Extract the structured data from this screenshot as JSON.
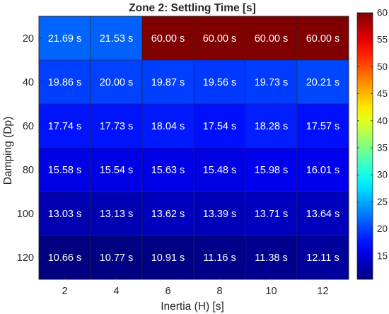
{
  "chart_data": {
    "type": "heatmap",
    "title": "Zone 2: Settling Time [s]",
    "xlabel": "Inertia (H) [s]",
    "ylabel": "Damping (Dp)",
    "x_categories": [
      "2",
      "4",
      "6",
      "8",
      "10",
      "12"
    ],
    "y_categories": [
      "20",
      "40",
      "60",
      "80",
      "100",
      "120"
    ],
    "values": [
      [
        21.69,
        21.53,
        60.0,
        60.0,
        60.0,
        60.0
      ],
      [
        19.86,
        20.0,
        19.87,
        19.56,
        19.73,
        20.21
      ],
      [
        17.74,
        17.73,
        18.04,
        17.54,
        18.28,
        17.57
      ],
      [
        15.58,
        15.54,
        15.63,
        15.48,
        15.98,
        16.01
      ],
      [
        13.03,
        13.13,
        13.62,
        13.39,
        13.71,
        13.64
      ],
      [
        10.66,
        10.77,
        10.91,
        11.16,
        11.38,
        12.11
      ]
    ],
    "cell_labels": [
      [
        "21.69 s",
        "21.53 s",
        "60.00 s",
        "60.00 s",
        "60.00 s",
        "60.00 s"
      ],
      [
        "19.86 s",
        "20.00 s",
        "19.87 s",
        "19.56 s",
        "19.73 s",
        "20.21 s"
      ],
      [
        "17.74 s",
        "17.73 s",
        "18.04 s",
        "17.54 s",
        "18.28 s",
        "17.57 s"
      ],
      [
        "15.58 s",
        "15.54 s",
        "15.63 s",
        "15.48 s",
        "15.98 s",
        "16.01 s"
      ],
      [
        "13.03 s",
        "13.13 s",
        "13.62 s",
        "13.39 s",
        "13.71 s",
        "13.64 s"
      ],
      [
        "10.66 s",
        "10.77 s",
        "10.91 s",
        "11.16 s",
        "11.38 s",
        "12.11 s"
      ]
    ],
    "colormap": "jet",
    "colorbar": {
      "range": [
        10.66,
        60.0
      ],
      "ticks": [
        15,
        20,
        25,
        30,
        35,
        40,
        45,
        50,
        55,
        60
      ],
      "tick_labels": [
        "15",
        "20",
        "25",
        "30",
        "35",
        "40",
        "45",
        "50",
        "55",
        "60"
      ]
    },
    "grid": false
  }
}
